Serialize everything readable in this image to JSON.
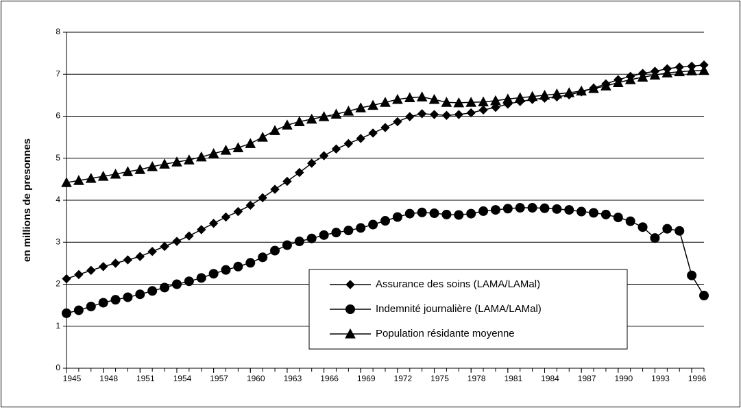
{
  "chart_data": {
    "type": "line",
    "y_label": "en millions de presonnes",
    "x": [
      1945,
      1946,
      1947,
      1948,
      1949,
      1950,
      1951,
      1952,
      1953,
      1954,
      1955,
      1956,
      1957,
      1958,
      1959,
      1960,
      1961,
      1962,
      1963,
      1964,
      1965,
      1966,
      1967,
      1968,
      1969,
      1970,
      1971,
      1972,
      1973,
      1974,
      1975,
      1976,
      1977,
      1978,
      1979,
      1980,
      1981,
      1982,
      1983,
      1984,
      1985,
      1986,
      1987,
      1988,
      1989,
      1990,
      1991,
      1992,
      1993,
      1994,
      1995,
      1996,
      1997
    ],
    "series": [
      {
        "name": "Assurance des soins (LAMA/LAMal)",
        "color": "#000000",
        "marker": "diamond",
        "values": [
          2.13,
          2.23,
          2.33,
          2.42,
          2.5,
          2.58,
          2.66,
          2.78,
          2.9,
          3.02,
          3.15,
          3.3,
          3.45,
          3.6,
          3.73,
          3.88,
          4.06,
          4.26,
          4.45,
          4.66,
          4.88,
          5.06,
          5.22,
          5.35,
          5.47,
          5.6,
          5.73,
          5.87,
          5.99,
          6.06,
          6.04,
          6.02,
          6.04,
          6.08,
          6.15,
          6.21,
          6.29,
          6.35,
          6.4,
          6.43,
          6.46,
          6.51,
          6.58,
          6.67,
          6.77,
          6.87,
          6.95,
          7.02,
          7.07,
          7.13,
          7.17,
          7.19,
          7.22
        ]
      },
      {
        "name": "Indemnité journalière (LAMA/LAMal)",
        "color": "#000000",
        "marker": "circle",
        "values": [
          1.31,
          1.38,
          1.47,
          1.56,
          1.63,
          1.69,
          1.76,
          1.84,
          1.92,
          2.0,
          2.07,
          2.15,
          2.25,
          2.34,
          2.42,
          2.51,
          2.64,
          2.8,
          2.93,
          3.02,
          3.09,
          3.17,
          3.23,
          3.28,
          3.34,
          3.42,
          3.51,
          3.6,
          3.68,
          3.71,
          3.69,
          3.66,
          3.65,
          3.68,
          3.74,
          3.77,
          3.8,
          3.82,
          3.82,
          3.81,
          3.79,
          3.77,
          3.73,
          3.7,
          3.66,
          3.59,
          3.5,
          3.36,
          3.1,
          3.32,
          3.27,
          2.21,
          1.73
        ]
      },
      {
        "name": "Population résidante moyenne",
        "color": "#000000",
        "marker": "triangle",
        "values": [
          4.42,
          4.47,
          4.52,
          4.57,
          4.62,
          4.68,
          4.73,
          4.8,
          4.86,
          4.91,
          4.96,
          5.03,
          5.11,
          5.19,
          5.25,
          5.35,
          5.5,
          5.66,
          5.79,
          5.87,
          5.93,
          5.99,
          6.05,
          6.12,
          6.2,
          6.26,
          6.33,
          6.4,
          6.44,
          6.46,
          6.4,
          6.33,
          6.32,
          6.33,
          6.34,
          6.37,
          6.41,
          6.44,
          6.47,
          6.5,
          6.53,
          6.56,
          6.6,
          6.66,
          6.72,
          6.8,
          6.87,
          6.93,
          6.98,
          7.03,
          7.06,
          7.08,
          7.09
        ]
      }
    ],
    "xlim": [
      1945,
      1997
    ],
    "xticks": [
      1945,
      1948,
      1951,
      1954,
      1957,
      1960,
      1963,
      1966,
      1969,
      1972,
      1975,
      1978,
      1981,
      1984,
      1987,
      1990,
      1993,
      1996
    ],
    "ylim": [
      0,
      8
    ],
    "yticks": [
      0,
      1,
      2,
      3,
      4,
      5,
      6,
      7,
      8
    ],
    "grid": true,
    "legend": "lower right"
  }
}
